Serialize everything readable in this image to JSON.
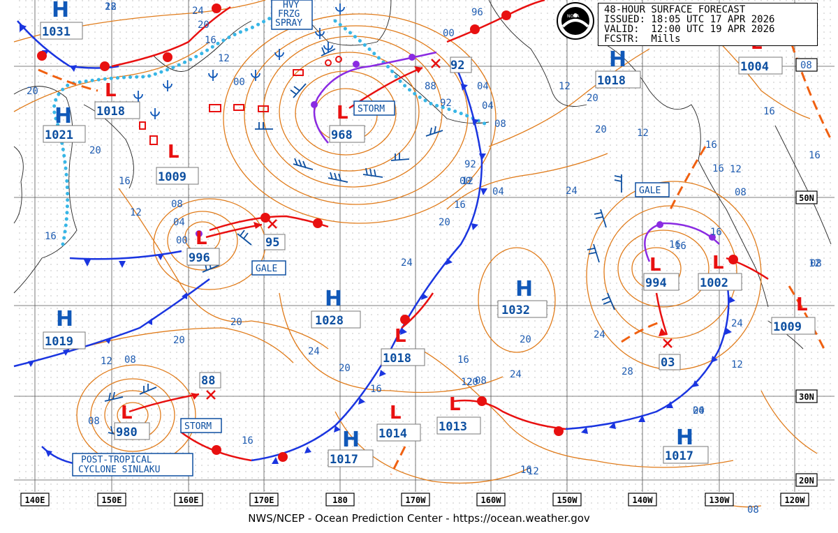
{
  "header": {
    "title": "48-HOUR SURFACE FORECAST",
    "issued": "ISSUED: 18:05 UTC 17 APR 2026",
    "valid": "VALID:  12:00 UTC 19 APR 2026",
    "forecaster": "FCSTR:  Mills"
  },
  "logo_text": "NOAA",
  "footer": "NWS/NCEP - Ocean Prediction Center - https://ocean.weather.gov",
  "colors": {
    "isobar": "#e07b1a",
    "cold_front": "#1a35e0",
    "warm_front": "#e81010",
    "occluded_front": "#8a2be2",
    "ice": "#38b6e6",
    "track": "#e81010",
    "label_text": "#0d4fa0"
  },
  "longitude_labels": [
    "140E",
    "150E",
    "160E",
    "170E",
    "180",
    "170W",
    "160W",
    "150W",
    "140W",
    "130W",
    "120W"
  ],
  "latitude_labels": [
    "50N",
    "30N",
    "20N"
  ],
  "highs": [
    {
      "letter": "H",
      "pressure": "1031"
    },
    {
      "letter": "H",
      "pressure": "1021"
    },
    {
      "letter": "H",
      "pressure": "1019"
    },
    {
      "letter": "H",
      "pressure": "1028"
    },
    {
      "letter": "H",
      "pressure": "1017"
    },
    {
      "letter": "H",
      "pressure": "1032"
    },
    {
      "letter": "H",
      "pressure": "1018"
    },
    {
      "letter": "H",
      "pressure": "1017"
    }
  ],
  "lows": [
    {
      "pressure": "1018"
    },
    {
      "pressure": "1009"
    },
    {
      "pressure": "968"
    },
    {
      "pressure": "996"
    },
    {
      "pressure": "980"
    },
    {
      "pressure": "1018"
    },
    {
      "pressure": "1014"
    },
    {
      "pressure": "1013"
    },
    {
      "pressure": "994"
    },
    {
      "pressure": "1002"
    },
    {
      "pressure": "1009"
    },
    {
      "pressure": "1004"
    }
  ],
  "forecast_positions": [
    "92",
    "95",
    "88",
    "03"
  ],
  "warnings": [
    "STORM",
    "GALE",
    "STORM",
    "GALE"
  ],
  "hvy_frzg_spray": [
    "HVY",
    "FRZG",
    "SPRAY"
  ],
  "cyclone_label": [
    "POST-TROPICAL",
    "CYCLONE SINLAKU"
  ],
  "isobar_labels": [
    "28",
    "24",
    "20",
    "16",
    "12",
    "20",
    "20",
    "16",
    "08",
    "04",
    "00",
    "12",
    "08",
    "20",
    "16",
    "20",
    "16",
    "12",
    "08",
    "24",
    "20",
    "16",
    "12",
    "08",
    "04",
    "00",
    "92",
    "96",
    "00",
    "04",
    "88",
    "92",
    "24",
    "20",
    "16",
    "12",
    "08",
    "04",
    "00",
    "20",
    "24",
    "24",
    "20",
    "28",
    "24",
    "20",
    "16",
    "12",
    "16",
    "24",
    "20",
    "16",
    "16",
    "12",
    "08",
    "16",
    "12",
    "12",
    "16",
    "16",
    "20",
    "12",
    "04",
    "08",
    "08",
    "12",
    "16",
    "16",
    "12"
  ],
  "corner_box": "08"
}
